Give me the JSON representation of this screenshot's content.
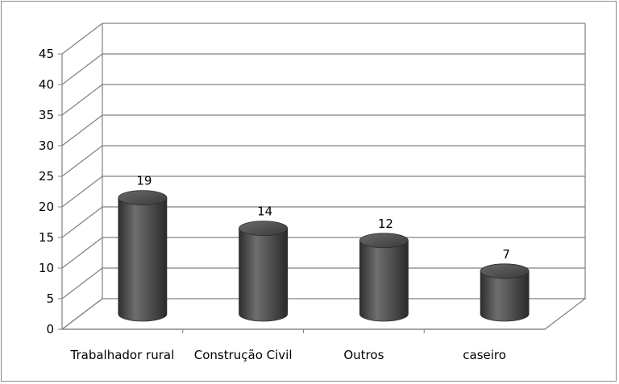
{
  "chart_data": {
    "type": "bar",
    "style": "3d-cylinder",
    "categories": [
      "Trabalhador rural",
      "Construção Civil",
      "Outros",
      "caseiro"
    ],
    "values": [
      19,
      14,
      12,
      7
    ],
    "data_labels": [
      "19",
      "14",
      "12",
      "7"
    ],
    "ylim": [
      0,
      45
    ],
    "yticks": [
      0,
      5,
      10,
      15,
      20,
      25,
      30,
      35,
      40,
      45
    ],
    "grid": true,
    "legend": "none",
    "colors": {
      "bar": "#4a4a4a",
      "bar_highlight": "#7a7a7a",
      "grid": "#808080"
    }
  }
}
